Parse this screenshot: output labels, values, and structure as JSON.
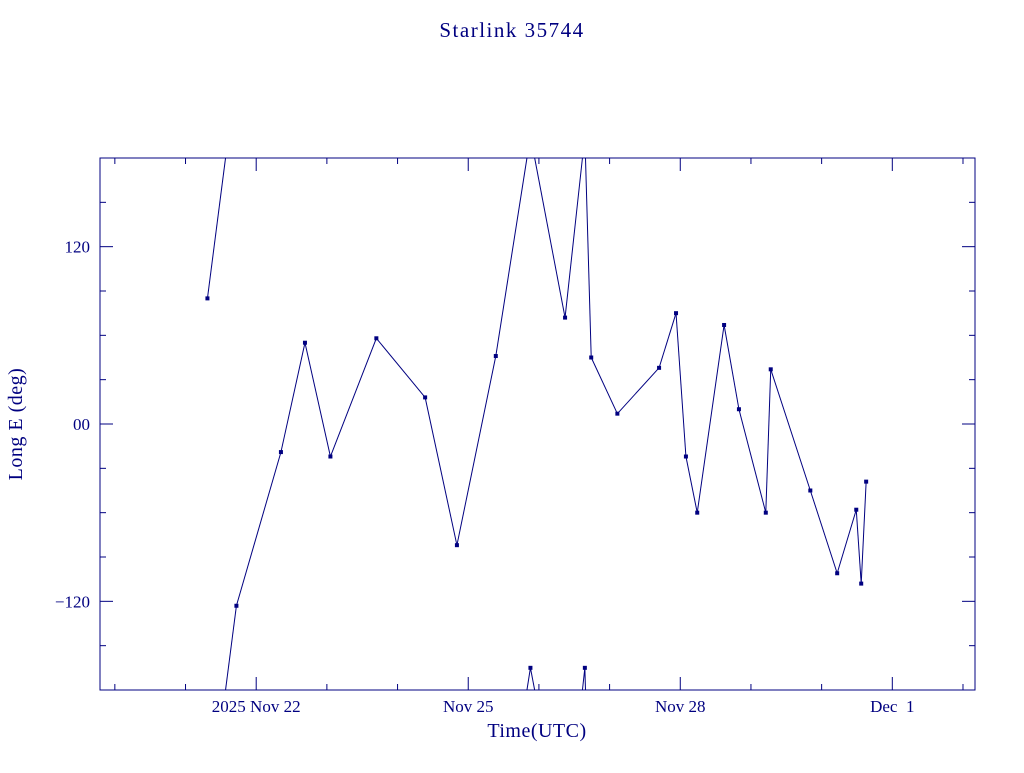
{
  "window": {
    "title": "Starlink 35744"
  },
  "colors": {
    "plot": "#000080",
    "background": "#ffffff"
  },
  "chart_data": {
    "type": "line",
    "title": "Starlink 35744",
    "xlabel": "Time(UTC)",
    "ylabel": "Long E (deg)",
    "x_unit": "days relative to 2025 Nov 22 00:00 UTC (from x tick labels)",
    "xlim": [
      -2.21,
      10.17
    ],
    "ylim": [
      -180,
      180
    ],
    "grid": false,
    "legend": "none",
    "line_color": "#000080",
    "marker": "filled-square",
    "wrap_at_degrees": 180,
    "x_minor_tick_step": 1,
    "y_minor_tick_step": 30,
    "xticks": [
      {
        "x": 0,
        "label": "2025 Nov 22"
      },
      {
        "x": 3,
        "label": "Nov 25"
      },
      {
        "x": 6,
        "label": "Nov 28"
      },
      {
        "x": 9,
        "label": "Dec  1"
      }
    ],
    "yticks": [
      {
        "y": 120,
        "label": "120"
      },
      {
        "y": 0,
        "label": "00"
      },
      {
        "y": -120,
        "label": "−120"
      }
    ],
    "points": [
      [
        -0.69,
        85
      ],
      [
        -0.28,
        -123
      ],
      [
        0.35,
        -19
      ],
      [
        0.69,
        55
      ],
      [
        1.05,
        -22
      ],
      [
        1.7,
        58
      ],
      [
        2.39,
        18
      ],
      [
        2.84,
        -82
      ],
      [
        3.39,
        46
      ],
      [
        3.88,
        -165
      ],
      [
        4.37,
        72
      ],
      [
        4.65,
        -165
      ],
      [
        4.74,
        45
      ],
      [
        5.11,
        7
      ],
      [
        5.7,
        38
      ],
      [
        5.94,
        75
      ],
      [
        6.08,
        -22
      ],
      [
        6.24,
        -60
      ],
      [
        6.62,
        67
      ],
      [
        6.83,
        10
      ],
      [
        7.21,
        -60
      ],
      [
        7.28,
        37
      ],
      [
        7.84,
        -45
      ],
      [
        8.22,
        -101
      ],
      [
        8.49,
        -58
      ],
      [
        8.56,
        -108
      ],
      [
        8.63,
        -39
      ]
    ]
  }
}
